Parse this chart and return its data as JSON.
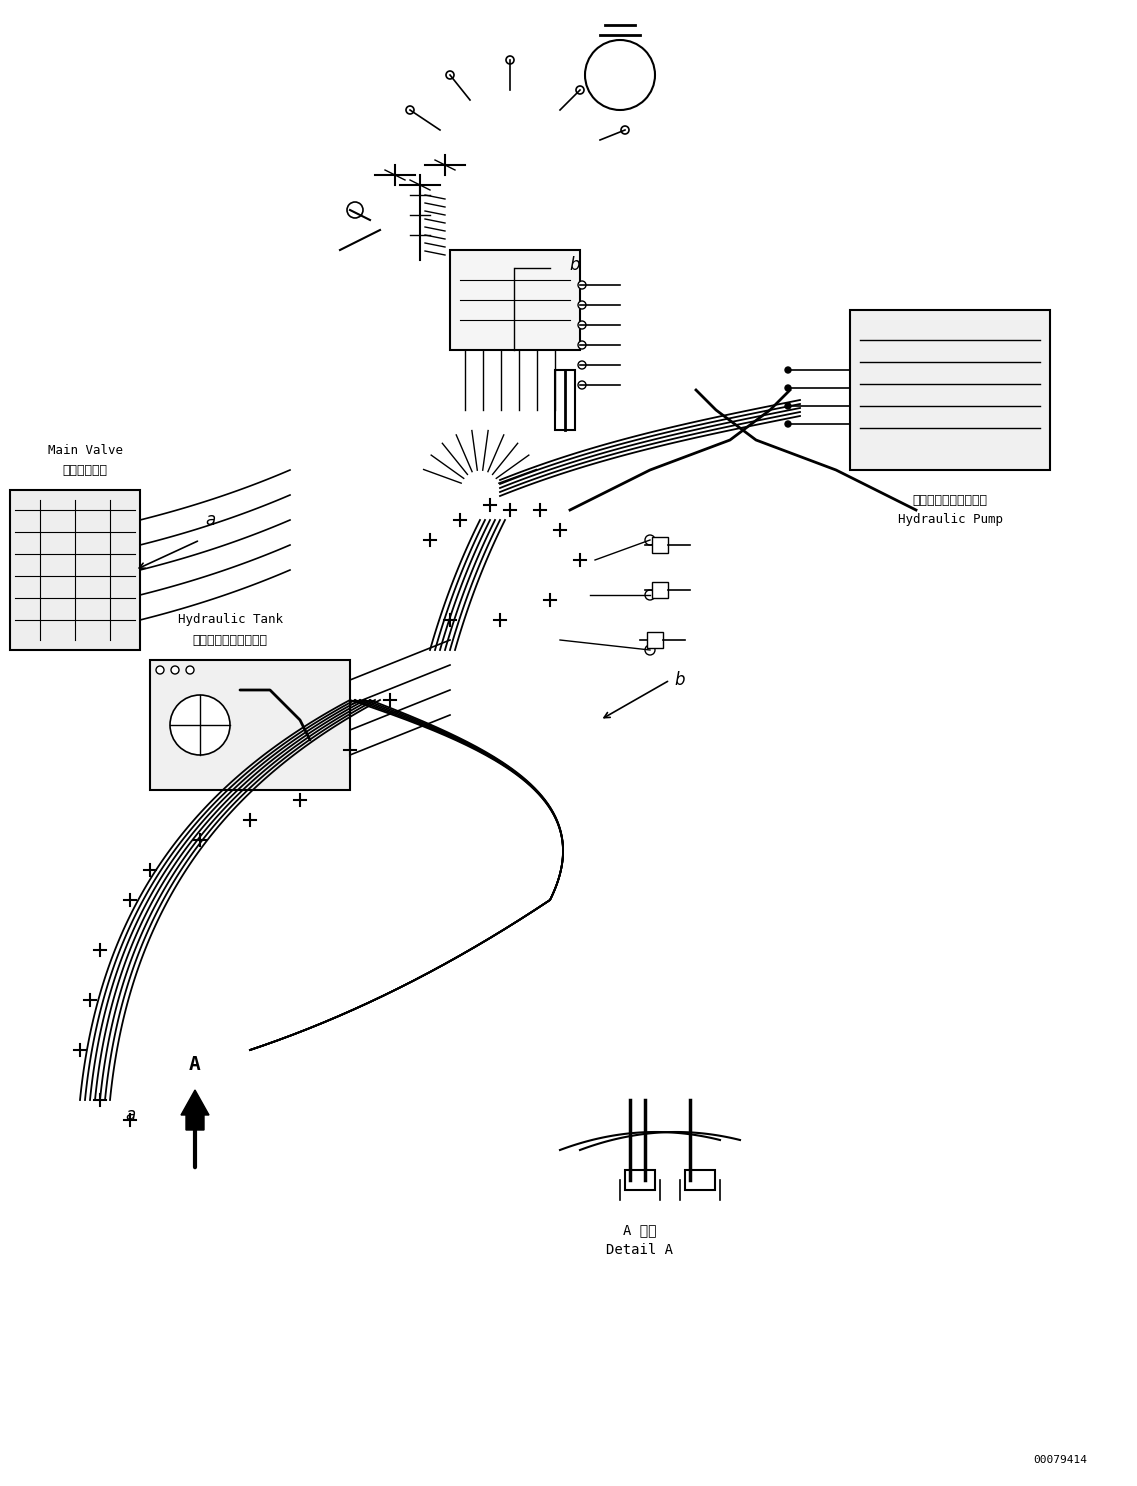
{
  "bg_color": "#ffffff",
  "line_color": "#000000",
  "fig_width": 11.37,
  "fig_height": 14.86,
  "dpi": 100,
  "part_number": "00079414",
  "labels": {
    "main_valve_jp": "メインバルブ",
    "main_valve_en": "Main Valve",
    "hydraulic_tank_jp": "ハイドロリックタンク",
    "hydraulic_tank_en": "Hydraulic Tank",
    "hydraulic_pump_jp": "ハイドロリックポンプ",
    "hydraulic_pump_en": "Hydraulic Pump",
    "detail_a_jp": "A 詳細",
    "detail_a_en": "Detail A",
    "label_a1": "a",
    "label_a2": "a",
    "label_b1": "b",
    "label_b2": "b",
    "label_A": "A"
  }
}
